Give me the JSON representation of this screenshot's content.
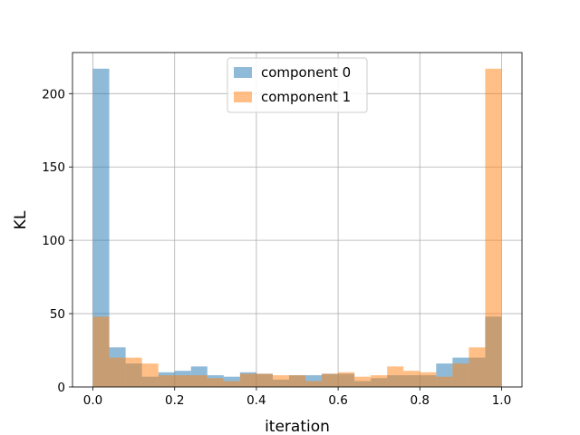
{
  "chart_data": {
    "type": "bar",
    "title": "",
    "xlabel": "iteration",
    "ylabel": "KL",
    "xlim": [
      -0.05,
      1.05
    ],
    "ylim": [
      0,
      228
    ],
    "xticks": [
      "0.0",
      "0.2",
      "0.4",
      "0.6",
      "0.8",
      "1.0"
    ],
    "yticks": [
      "0",
      "50",
      "100",
      "150",
      "200"
    ],
    "grid": true,
    "legend_position": "upper center",
    "bin_edges": [
      0.0,
      0.04,
      0.08,
      0.12,
      0.16,
      0.2,
      0.24,
      0.28,
      0.32,
      0.36,
      0.4,
      0.44,
      0.48,
      0.52,
      0.56,
      0.6,
      0.64,
      0.68,
      0.72,
      0.76,
      0.8,
      0.84,
      0.88,
      0.92,
      0.96,
      1.0
    ],
    "series": [
      {
        "name": "component 0",
        "color": "#1f77b4",
        "alpha": 0.5,
        "values": [
          217,
          27,
          16,
          7,
          10,
          11,
          14,
          8,
          7,
          10,
          9,
          5,
          8,
          8,
          9,
          9,
          4,
          6,
          8,
          8,
          8,
          16,
          20,
          20,
          48
        ]
      },
      {
        "name": "component 1",
        "color": "#ff7f0e",
        "alpha": 0.5,
        "values": [
          48,
          20,
          20,
          16,
          8,
          8,
          8,
          6,
          4,
          9,
          9,
          8,
          8,
          4,
          9,
          10,
          7,
          8,
          14,
          11,
          10,
          7,
          16,
          27,
          217
        ]
      }
    ]
  }
}
